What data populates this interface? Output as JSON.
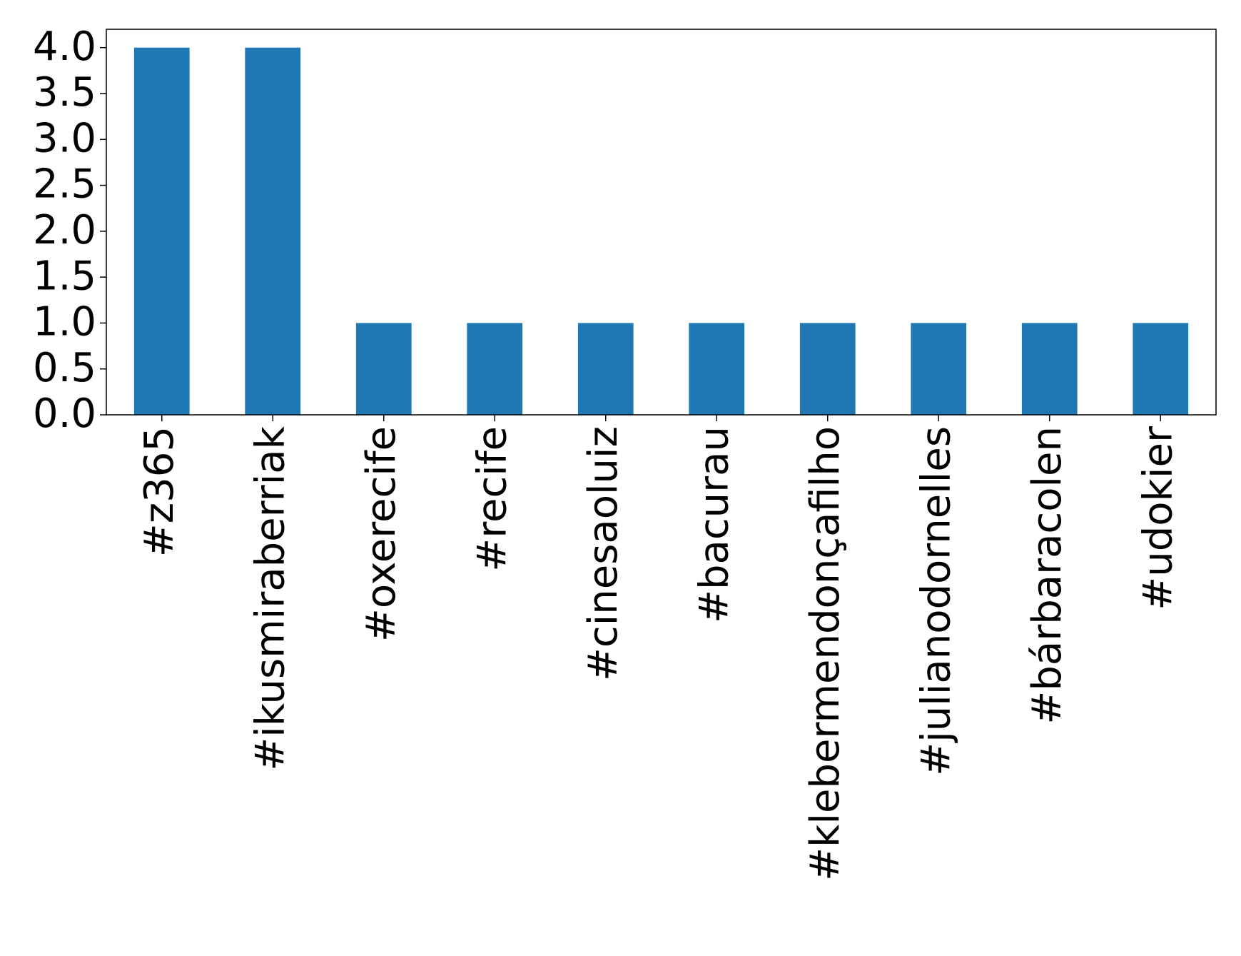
{
  "chart_data": {
    "type": "bar",
    "categories": [
      "#z365",
      "#ikusmiraberriak",
      "#oxerecife",
      "#recife",
      "#cinesaoluiz",
      "#bacurau",
      "#klebermendonçafilho",
      "#julianodornelles",
      "#bárbaracolen",
      "#udokier"
    ],
    "values": [
      4,
      4,
      1,
      1,
      1,
      1,
      1,
      1,
      1,
      1
    ],
    "color": "#1f77b4",
    "ylim": [
      0,
      4.2
    ],
    "yticks": [
      {
        "value": 0,
        "label": "0.0"
      },
      0.5,
      {
        "value": 1,
        "label": "1.0"
      },
      1.5,
      {
        "value": 2,
        "label": "2.0"
      },
      2.5,
      {
        "value": 3,
        "label": "3.0"
      },
      3.5,
      {
        "value": 4,
        "label": "4.0"
      }
    ],
    "grid": false
  }
}
